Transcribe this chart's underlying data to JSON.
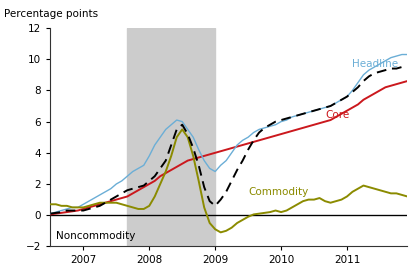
{
  "ylabel": "Percentage points",
  "ylim": [
    -2,
    12
  ],
  "yticks": [
    -2,
    0,
    2,
    4,
    6,
    8,
    10,
    12
  ],
  "background_color": "#ffffff",
  "shade_color": "#cccccc",
  "headline_color": "#6baed6",
  "core_color": "#cb181d",
  "noncommodity_color": "#000000",
  "commodity_color": "#8b8b00",
  "headline_label": "Headline",
  "core_label": "Core",
  "commodity_label": "Commodity",
  "noncommodity_label": "Noncommodity",
  "shade_xmin": 14,
  "shade_xmax": 30,
  "headline": [
    0.1,
    0.2,
    0.3,
    0.4,
    0.5,
    0.5,
    0.7,
    0.9,
    1.1,
    1.3,
    1.5,
    1.7,
    2.0,
    2.2,
    2.5,
    2.8,
    3.0,
    3.2,
    3.8,
    4.5,
    5.0,
    5.5,
    5.8,
    6.1,
    6.0,
    5.5,
    5.0,
    4.2,
    3.5,
    3.0,
    2.8,
    3.2,
    3.5,
    4.0,
    4.5,
    4.8,
    5.0,
    5.3,
    5.5,
    5.6,
    5.7,
    5.8,
    6.0,
    6.1,
    6.3,
    6.4,
    6.5,
    6.6,
    6.7,
    6.8,
    6.9,
    7.0,
    7.2,
    7.4,
    7.6,
    8.0,
    8.5,
    9.0,
    9.3,
    9.5,
    9.7,
    9.9,
    10.1,
    10.2,
    10.3,
    10.3
  ],
  "core": [
    0.05,
    0.1,
    0.15,
    0.2,
    0.25,
    0.3,
    0.4,
    0.5,
    0.6,
    0.7,
    0.8,
    0.9,
    1.0,
    1.1,
    1.2,
    1.4,
    1.6,
    1.8,
    2.0,
    2.2,
    2.5,
    2.7,
    2.9,
    3.1,
    3.3,
    3.5,
    3.6,
    3.7,
    3.8,
    3.9,
    4.0,
    4.1,
    4.2,
    4.3,
    4.4,
    4.5,
    4.6,
    4.7,
    4.8,
    4.9,
    5.0,
    5.1,
    5.2,
    5.3,
    5.4,
    5.5,
    5.6,
    5.7,
    5.8,
    5.9,
    6.0,
    6.1,
    6.3,
    6.5,
    6.7,
    6.9,
    7.1,
    7.4,
    7.6,
    7.8,
    8.0,
    8.2,
    8.3,
    8.4,
    8.5,
    8.6
  ],
  "noncommodity": [
    0.0,
    0.0,
    0.0,
    0.0,
    0.0,
    0.0,
    0.0,
    0.0,
    0.0,
    0.0,
    0.0,
    0.0,
    0.0,
    0.0,
    0.0,
    0.0,
    0.0,
    0.0,
    0.0,
    0.0,
    0.0,
    0.0,
    0.0,
    0.0,
    0.0,
    0.0,
    0.0,
    0.0,
    0.0,
    0.0,
    0.0,
    0.0,
    0.0,
    0.0,
    0.0,
    0.0,
    0.0,
    0.0,
    0.0,
    0.0,
    0.0,
    0.0,
    0.0,
    0.0,
    0.0,
    0.0,
    0.0,
    0.0,
    0.0,
    0.0,
    0.0,
    0.0,
    0.0,
    0.0,
    0.0,
    0.0,
    0.0,
    0.0,
    0.0,
    0.0,
    0.0,
    0.0,
    0.0,
    0.0,
    0.0,
    0.0
  ],
  "commodity": [
    0.7,
    0.7,
    0.6,
    0.6,
    0.5,
    0.5,
    0.5,
    0.6,
    0.7,
    0.8,
    0.8,
    0.8,
    0.8,
    0.7,
    0.6,
    0.5,
    0.4,
    0.4,
    0.6,
    1.2,
    2.0,
    2.8,
    3.8,
    5.0,
    5.5,
    5.0,
    3.8,
    2.2,
    0.5,
    -0.5,
    -0.9,
    -1.1,
    -1.0,
    -0.8,
    -0.5,
    -0.3,
    -0.1,
    0.05,
    0.1,
    0.15,
    0.2,
    0.3,
    0.2,
    0.3,
    0.5,
    0.7,
    0.9,
    1.0,
    1.0,
    1.1,
    0.9,
    0.8,
    0.9,
    1.0,
    1.2,
    1.5,
    1.7,
    1.9,
    1.8,
    1.7,
    1.6,
    1.5,
    1.4,
    1.4,
    1.3,
    1.2
  ],
  "dashed": [
    0.1,
    0.15,
    0.2,
    0.3,
    0.3,
    0.3,
    0.3,
    0.4,
    0.5,
    0.6,
    0.8,
    1.0,
    1.2,
    1.4,
    1.6,
    1.7,
    1.8,
    1.9,
    2.2,
    2.5,
    3.0,
    3.5,
    4.5,
    5.5,
    5.8,
    5.2,
    4.3,
    3.2,
    1.8,
    0.9,
    0.6,
    1.0,
    1.5,
    2.2,
    2.9,
    3.5,
    4.2,
    4.8,
    5.3,
    5.6,
    5.8,
    6.0,
    6.1,
    6.2,
    6.3,
    6.4,
    6.5,
    6.6,
    6.7,
    6.8,
    6.9,
    7.0,
    7.2,
    7.4,
    7.6,
    7.9,
    8.2,
    8.6,
    8.9,
    9.1,
    9.2,
    9.3,
    9.4,
    9.4,
    9.5,
    9.5
  ],
  "x_tick_positions": [
    6,
    18,
    30,
    42,
    54
  ],
  "x_tick_labels": [
    "2007",
    "2008",
    "2009",
    "2010",
    "2011"
  ]
}
